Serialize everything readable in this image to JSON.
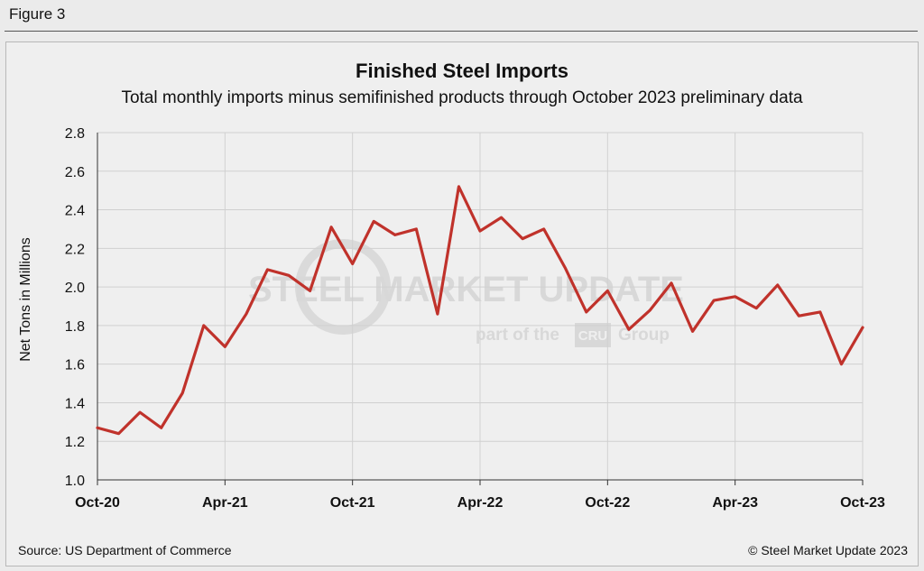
{
  "figure": {
    "label": "Figure 3"
  },
  "watermark": {
    "brand": "STEEL MARKET UPDATE",
    "tagline_pre": "part of the",
    "tagline_logo": "CRU",
    "tagline_post": "Group"
  },
  "footer": {
    "source": "Source: US Department of Commerce",
    "copyright": "© Steel Market Update 2023"
  },
  "colors": {
    "line": "#c0322b",
    "grid": "#d0d0d0",
    "axis": "#333333"
  },
  "chart_data": {
    "type": "line",
    "title": "Finished Steel Imports",
    "subtitle": "Total monthly imports minus semifinished products through October 2023 preliminary data",
    "xlabel": "",
    "ylabel": "Net Tons in Millions",
    "ylim": [
      1.0,
      2.8
    ],
    "yticks": [
      1.0,
      1.2,
      1.4,
      1.6,
      1.8,
      2.0,
      2.2,
      2.4,
      2.6,
      2.8
    ],
    "ytick_labels": [
      "1.0",
      "1.2",
      "1.4",
      "1.6",
      "1.8",
      "2.0",
      "2.2",
      "2.4",
      "2.6",
      "2.8"
    ],
    "x_tick_labels": [
      {
        "index": 0,
        "label": "Oct-20"
      },
      {
        "index": 6,
        "label": "Apr-21"
      },
      {
        "index": 12,
        "label": "Oct-21"
      },
      {
        "index": 18,
        "label": "Apr-22"
      },
      {
        "index": 24,
        "label": "Oct-22"
      },
      {
        "index": 30,
        "label": "Apr-23"
      },
      {
        "index": 36,
        "label": "Oct-23"
      }
    ],
    "series": [
      {
        "name": "Finished Steel Imports",
        "x": [
          "Oct-20",
          "Nov-20",
          "Dec-20",
          "Jan-21",
          "Feb-21",
          "Mar-21",
          "Apr-21",
          "May-21",
          "Jun-21",
          "Jul-21",
          "Aug-21",
          "Sep-21",
          "Oct-21",
          "Nov-21",
          "Dec-21",
          "Jan-22",
          "Feb-22",
          "Mar-22",
          "Apr-22",
          "May-22",
          "Jun-22",
          "Jul-22",
          "Aug-22",
          "Sep-22",
          "Oct-22",
          "Nov-22",
          "Dec-22",
          "Jan-23",
          "Feb-23",
          "Mar-23",
          "Apr-23",
          "May-23",
          "Jun-23",
          "Jul-23",
          "Aug-23",
          "Sep-23",
          "Oct-23"
        ],
        "values": [
          1.27,
          1.24,
          1.35,
          1.27,
          1.45,
          1.8,
          1.69,
          1.86,
          2.09,
          2.06,
          1.98,
          2.31,
          2.12,
          2.34,
          2.27,
          2.3,
          1.86,
          2.52,
          2.29,
          2.36,
          2.25,
          2.3,
          2.1,
          1.87,
          1.98,
          1.78,
          1.88,
          2.02,
          1.77,
          1.93,
          1.95,
          1.89,
          2.01,
          1.85,
          1.87,
          1.6,
          1.79
        ]
      }
    ]
  }
}
